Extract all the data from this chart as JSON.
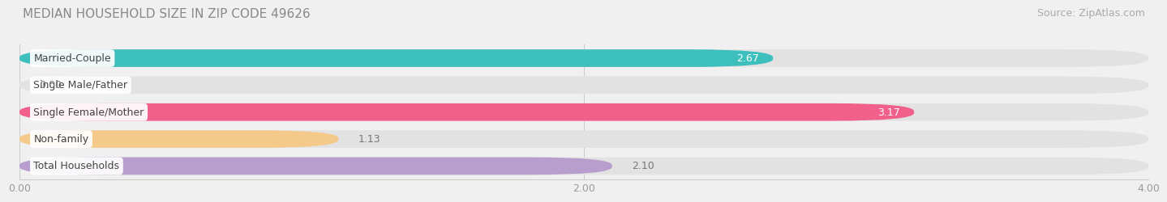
{
  "title": "MEDIAN HOUSEHOLD SIZE IN ZIP CODE 49626",
  "source": "Source: ZipAtlas.com",
  "categories": [
    "Married-Couple",
    "Single Male/Father",
    "Single Female/Mother",
    "Non-family",
    "Total Households"
  ],
  "values": [
    2.67,
    0.0,
    3.17,
    1.13,
    2.1
  ],
  "bar_colors": [
    "#3dbfbe",
    "#a8b8e8",
    "#f0608a",
    "#f5c98a",
    "#b89ecc"
  ],
  "xlim": [
    0,
    4.0
  ],
  "xticks": [
    0.0,
    2.0,
    4.0
  ],
  "xtick_labels": [
    "0.00",
    "2.00",
    "4.00"
  ],
  "title_fontsize": 11,
  "source_fontsize": 9,
  "label_fontsize": 9,
  "value_fontsize": 9,
  "background_color": "#f0f0f0",
  "bar_background_color": "#e2e2e2"
}
